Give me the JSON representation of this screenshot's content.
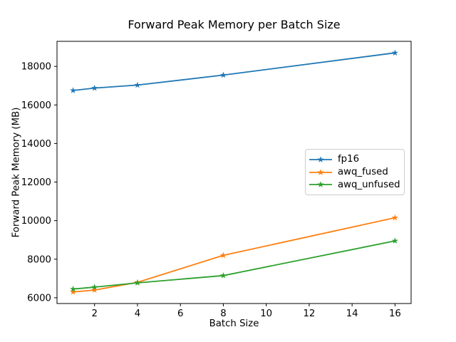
{
  "figure": {
    "background": "#ffffff",
    "spine_color": "#000000",
    "text_color": "#000000",
    "legend_border_color": "#cccccc"
  },
  "chart_data": {
    "type": "line",
    "title": "Forward Peak Memory per Batch Size",
    "xlabel": "Batch Size",
    "ylabel": "Forward Peak Memory (MB)",
    "x": [
      1,
      2,
      4,
      8,
      16
    ],
    "series": [
      {
        "name": "fp16",
        "color": "#1f77b4",
        "values": [
          16750,
          16875,
          17030,
          17550,
          18700
        ]
      },
      {
        "name": "awq_fused",
        "color": "#ff7f0e",
        "values": [
          6300,
          6400,
          6800,
          8200,
          10150
        ]
      },
      {
        "name": "awq_unfused",
        "color": "#2ca02c",
        "values": [
          6450,
          6550,
          6770,
          7150,
          8950
        ]
      }
    ],
    "xlim": [
      0.25,
      16.75
    ],
    "ylim": [
      5700,
      19300
    ],
    "xticks": [
      2,
      4,
      6,
      8,
      10,
      12,
      14,
      16
    ],
    "yticks": [
      6000,
      8000,
      10000,
      12000,
      14000,
      16000,
      18000
    ],
    "grid": false,
    "marker": "star",
    "legend_position": "center right"
  }
}
